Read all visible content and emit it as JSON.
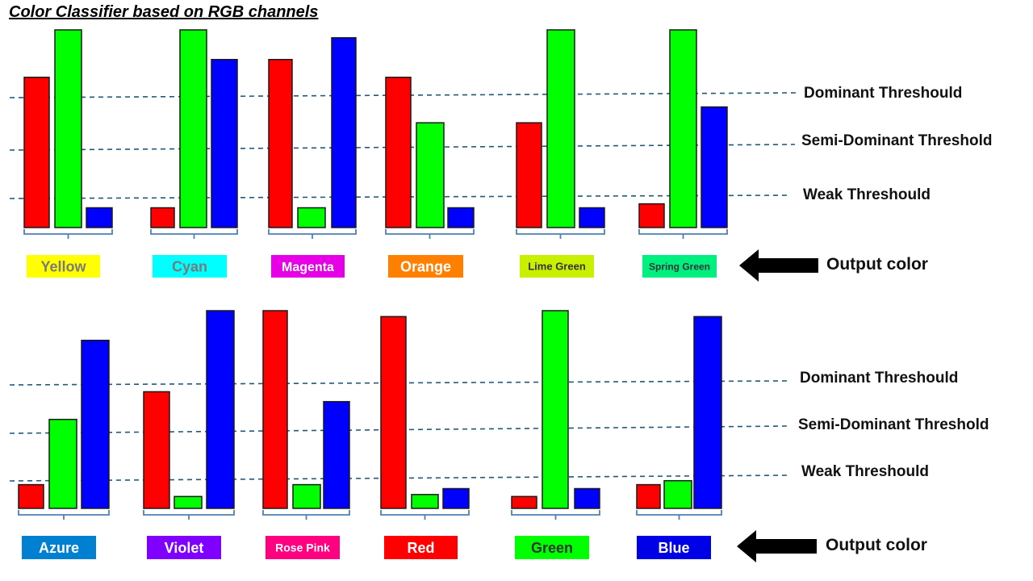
{
  "title": "Color Classifier based on RGB channels",
  "threshold_labels": {
    "dominant": "Dominant Threshould",
    "semi_dominant": "Semi-Dominant Threshold",
    "weak": "Weak Threshould"
  },
  "output_label": "Output color",
  "channel_colors": {
    "r": "#ff0000",
    "g": "#00ff00",
    "b": "#0000ff"
  },
  "rows": [
    {
      "classes": [
        {
          "name": "Yellow",
          "r": 0.76,
          "g": 1.0,
          "b": 0.1,
          "badge_bg": "#ffff00",
          "badge_fg": "#7a7a7a"
        },
        {
          "name": "Cyan",
          "r": 0.1,
          "g": 1.0,
          "b": 0.85,
          "badge_bg": "#00ffff",
          "badge_fg": "#7a7a7a"
        },
        {
          "name": "Magenta",
          "r": 0.85,
          "g": 0.1,
          "b": 0.96,
          "badge_bg": "#e600e6",
          "badge_fg": "#ffffff"
        },
        {
          "name": "Orange",
          "r": 0.76,
          "g": 0.53,
          "b": 0.1,
          "badge_bg": "#ff8000",
          "badge_fg": "#ffffff"
        },
        {
          "name": "Lime Green",
          "r": 0.53,
          "g": 1.0,
          "b": 0.1,
          "badge_bg": "#c8f000",
          "badge_fg": "#333333"
        },
        {
          "name": "Spring Green",
          "r": 0.12,
          "g": 1.0,
          "b": 0.61,
          "badge_bg": "#00f080",
          "badge_fg": "#333333"
        }
      ]
    },
    {
      "classes": [
        {
          "name": "Azure",
          "r": 0.12,
          "g": 0.45,
          "b": 0.85,
          "badge_bg": "#0080d0",
          "badge_fg": "#ffffff"
        },
        {
          "name": "Violet",
          "r": 0.59,
          "g": 0.06,
          "b": 1.0,
          "badge_bg": "#8000ff",
          "badge_fg": "#ffffff"
        },
        {
          "name": "Rose Pink",
          "r": 1.0,
          "g": 0.12,
          "b": 0.54,
          "badge_bg": "#ff0080",
          "badge_fg": "#ffffff"
        },
        {
          "name": "Red",
          "r": 0.97,
          "g": 0.07,
          "b": 0.1,
          "badge_bg": "#ff0000",
          "badge_fg": "#ffffff"
        },
        {
          "name": "Green",
          "r": 0.06,
          "g": 1.0,
          "b": 0.1,
          "badge_bg": "#00ff00",
          "badge_fg": "#333333"
        },
        {
          "name": "Blue",
          "r": 0.12,
          "g": 0.14,
          "b": 0.97,
          "badge_bg": "#0000e6",
          "badge_fg": "#ffffff"
        }
      ]
    }
  ]
}
